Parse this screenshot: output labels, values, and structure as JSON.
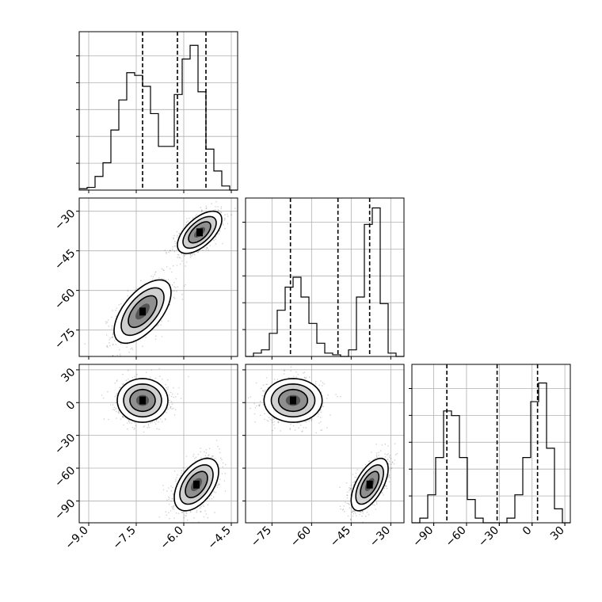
{
  "chart_data": {
    "type": "corner",
    "grid": true,
    "parameters": [
      {
        "range": [
          -9.3,
          -4.3
        ],
        "ticks": [
          -9.0,
          -7.5,
          -6.0,
          -4.5
        ],
        "tick_labels": [
          "−9.0",
          "−7.5",
          "−6.0",
          "−4.5"
        ],
        "quantile_lines": [
          -7.3,
          -6.2,
          -5.3
        ]
      },
      {
        "range": [
          -85,
          -25
        ],
        "ticks": [
          -75,
          -60,
          -45,
          -30
        ],
        "tick_labels": [
          "−75",
          "−60",
          "−45",
          "−30"
        ],
        "quantile_lines": [
          -68,
          -50,
          -38
        ]
      },
      {
        "range": [
          -110,
          35
        ],
        "ticks": [
          -90,
          -60,
          -30,
          0,
          30
        ],
        "tick_labels": [
          "−90",
          "−60",
          "−30",
          "0",
          "30"
        ],
        "quantile_lines": [
          -78,
          -32,
          5
        ]
      }
    ],
    "histograms": [
      {
        "bin_edges": [
          -9.3,
          -9.05,
          -8.8,
          -8.55,
          -8.3,
          -8.05,
          -7.8,
          -7.55,
          -7.3,
          -7.05,
          -6.8,
          -6.55,
          -6.3,
          -6.05,
          -5.8,
          -5.55,
          -5.3,
          -5.05,
          -4.8,
          -4.55,
          -4.3
        ],
        "counts": [
          0.5,
          1,
          5,
          10,
          22,
          33,
          43,
          42,
          38,
          28,
          16,
          16,
          35,
          48,
          53,
          36,
          15,
          7,
          1.5,
          0
        ],
        "ymax": 58
      },
      {
        "bin_edges": [
          -85,
          -82,
          -79,
          -76,
          -73,
          -70,
          -67,
          -64,
          -61,
          -58,
          -55,
          -52,
          -49,
          -46,
          -43,
          -40,
          -37,
          -34,
          -31,
          -28,
          -25
        ],
        "counts": [
          0,
          1,
          2,
          7,
          14,
          21,
          24,
          18,
          10,
          4,
          1,
          0.5,
          0,
          2,
          18,
          40,
          45,
          16,
          1,
          0
        ],
        "ymax": 48
      },
      {
        "bin_edges": [
          -110,
          -102.75,
          -95.5,
          -88.25,
          -81,
          -73.75,
          -66.5,
          -59.25,
          -52,
          -44.75,
          -37.5,
          -30.25,
          -23,
          -15.75,
          -8.5,
          -1.25,
          6,
          13.25,
          20.5,
          27.75,
          35
        ],
        "counts": [
          0,
          1,
          6,
          14,
          24,
          23,
          14,
          5,
          1,
          0,
          0,
          0,
          1,
          6,
          14,
          26,
          30,
          16,
          3,
          0
        ],
        "ymax": 34
      }
    ],
    "joint_2d": [
      {
        "row": 1,
        "col": 0,
        "modes": [
          {
            "center": [
              -7.3,
              -68
            ],
            "sigma": [
              0.45,
              6.0
            ],
            "correlation": 0.6
          },
          {
            "center": [
              -5.5,
              -38
            ],
            "sigma": [
              0.35,
              4.0
            ],
            "correlation": 0.6
          }
        ]
      },
      {
        "row": 2,
        "col": 0,
        "modes": [
          {
            "center": [
              -7.3,
              2
            ],
            "sigma": [
              0.4,
              10.0
            ],
            "correlation": 0.0
          },
          {
            "center": [
              -5.6,
              -75
            ],
            "sigma": [
              0.35,
              12.0
            ],
            "correlation": 0.5
          }
        ]
      },
      {
        "row": 2,
        "col": 1,
        "modes": [
          {
            "center": [
              -67,
              2
            ],
            "sigma": [
              5.5,
              10.0
            ],
            "correlation": 0.0
          },
          {
            "center": [
              -38,
              -75
            ],
            "sigma": [
              3.5,
              12.0
            ],
            "correlation": 0.6
          }
        ]
      }
    ]
  }
}
